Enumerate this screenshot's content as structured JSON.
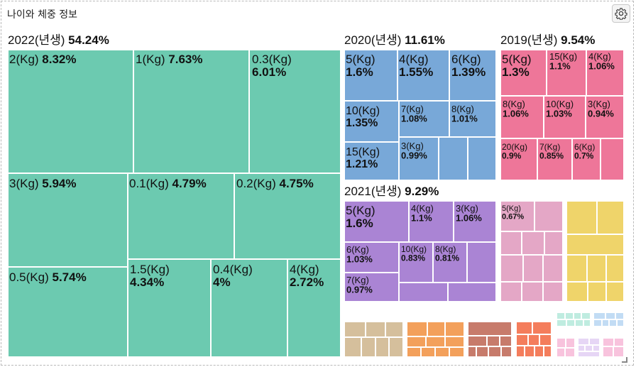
{
  "header": {
    "title": "나이와 체중 정보",
    "settings_icon": "gear-icon"
  },
  "colors": {
    "2022": "#6ccab0",
    "2020": "#78a8d8",
    "2019": "#ee7699",
    "2021": "#aa84d4",
    "g5": "#e4a7c6",
    "g6": "#efd46a",
    "g7": "#d5bf9c",
    "g8": "#f3a05b",
    "g9": "#c77b6b",
    "g10": "#f47d5c",
    "g11": "#bfece0",
    "g12": "#c2dcf4",
    "g13": "#f8c3dd",
    "g14": "#e6d6f5"
  },
  "chart_data": {
    "type": "treemap",
    "groups": [
      {
        "name": "2022(년생)",
        "share": "54.24%",
        "items": [
          {
            "label": "2(Kg)",
            "value": "8.32%"
          },
          {
            "label": "1(Kg)",
            "value": "7.63%"
          },
          {
            "label": "0.3(Kg)",
            "value": "6.01%"
          },
          {
            "label": "3(Kg)",
            "value": "5.94%"
          },
          {
            "label": "0.1(Kg)",
            "value": "4.79%"
          },
          {
            "label": "0.2(Kg)",
            "value": "4.75%"
          },
          {
            "label": "0.5(Kg)",
            "value": "5.74%"
          },
          {
            "label": "1.5(Kg)",
            "value": "4.34%"
          },
          {
            "label": "0.4(Kg)",
            "value": "4%"
          },
          {
            "label": "4(Kg)",
            "value": "2.72%"
          }
        ]
      },
      {
        "name": "2020(년생)",
        "share": "11.61%",
        "items": [
          {
            "label": "5(Kg)",
            "value": "1.6%"
          },
          {
            "label": "4(Kg)",
            "value": "1.55%"
          },
          {
            "label": "6(Kg)",
            "value": "1.39%"
          },
          {
            "label": "10(Kg)",
            "value": "1.35%"
          },
          {
            "label": "7(Kg)",
            "value": "1.08%"
          },
          {
            "label": "8(Kg)",
            "value": "1.01%"
          },
          {
            "label": "15(Kg)",
            "value": "1.21%"
          },
          {
            "label": "3(Kg)",
            "value": "0.99%"
          }
        ]
      },
      {
        "name": "2019(년생)",
        "share": "9.54%",
        "items": [
          {
            "label": "5(Kg)",
            "value": "1.3%"
          },
          {
            "label": "15(Kg)",
            "value": "1.1%"
          },
          {
            "label": "4(Kg)",
            "value": "1.06%"
          },
          {
            "label": "8(Kg)",
            "value": "1.06%"
          },
          {
            "label": "10(Kg)",
            "value": "1.03%"
          },
          {
            "label": "3(Kg)",
            "value": "0.94%"
          },
          {
            "label": "20(Kg)",
            "value": "0.9%"
          },
          {
            "label": "7(Kg)",
            "value": "0.85%"
          },
          {
            "label": "6(Kg)",
            "value": "0.7%"
          }
        ]
      },
      {
        "name": "2021(년생)",
        "share": "9.29%",
        "items": [
          {
            "label": "5(Kg)",
            "value": "1.6%"
          },
          {
            "label": "4(Kg)",
            "value": "1.1%"
          },
          {
            "label": "3(Kg)",
            "value": "1.06%"
          },
          {
            "label": "6(Kg)",
            "value": "1.03%"
          },
          {
            "label": "10(Kg)",
            "value": "0.83%"
          },
          {
            "label": "8(Kg)",
            "value": "0.81%"
          },
          {
            "label": "7(Kg)",
            "value": "0.97%"
          }
        ]
      },
      {
        "name": "",
        "share": "",
        "items": [
          {
            "label": "5(Kg)",
            "value": "0.67%"
          }
        ]
      }
    ]
  }
}
